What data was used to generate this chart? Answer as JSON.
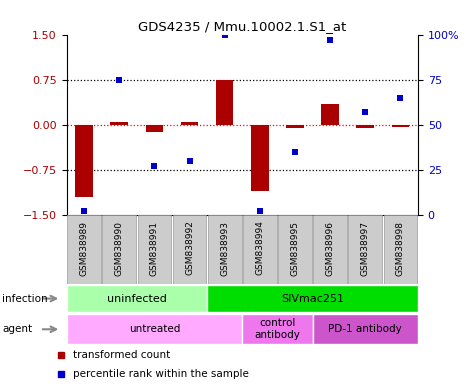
{
  "title": "GDS4235 / Mmu.10002.1.S1_at",
  "samples": [
    "GSM838989",
    "GSM838990",
    "GSM838991",
    "GSM838992",
    "GSM838993",
    "GSM838994",
    "GSM838995",
    "GSM838996",
    "GSM838997",
    "GSM838998"
  ],
  "transformed_count": [
    -1.2,
    0.05,
    -0.12,
    0.05,
    0.75,
    -1.1,
    -0.05,
    0.35,
    -0.05,
    -0.03
  ],
  "percentile_rank": [
    2,
    75,
    27,
    30,
    100,
    2,
    35,
    97,
    57,
    65
  ],
  "ylim_left": [
    -1.5,
    1.5
  ],
  "ylim_right": [
    0,
    100
  ],
  "yticks_left": [
    -1.5,
    -0.75,
    0,
    0.75,
    1.5
  ],
  "yticks_right": [
    0,
    25,
    50,
    75,
    100
  ],
  "ytick_labels_right": [
    "0",
    "25",
    "50",
    "75",
    "100%"
  ],
  "hlines_black": [
    -0.75,
    0.75
  ],
  "hline_red": 0,
  "bar_color": "#AA0000",
  "dot_color": "#0000CC",
  "infection_labels": [
    {
      "text": "uninfected",
      "start": 0,
      "end": 4,
      "color": "#AAFFAA"
    },
    {
      "text": "SIVmac251",
      "start": 4,
      "end": 10,
      "color": "#00DD00"
    }
  ],
  "agent_labels": [
    {
      "text": "untreated",
      "start": 0,
      "end": 5,
      "color": "#FFAAFF"
    },
    {
      "text": "control\nantibody",
      "start": 5,
      "end": 7,
      "color": "#EE77EE"
    },
    {
      "text": "PD-1 antibody",
      "start": 7,
      "end": 10,
      "color": "#CC55CC"
    }
  ],
  "legend_items": [
    {
      "label": "transformed count",
      "color": "#AA0000"
    },
    {
      "label": "percentile rank within the sample",
      "color": "#0000CC"
    }
  ],
  "infection_row_label": "infection",
  "agent_row_label": "agent",
  "label_arrow_color": "#888888",
  "tick_bg_color": "#CCCCCC",
  "tick_bg_edge": "#999999"
}
